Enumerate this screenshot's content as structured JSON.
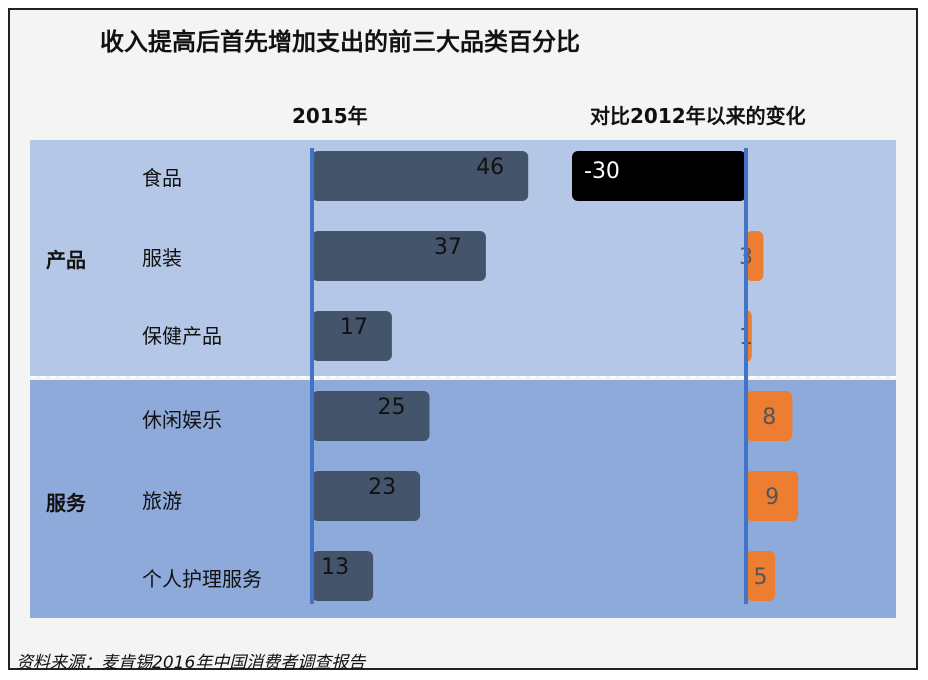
{
  "title": "收入提高后首先增加支出的前三大品类百分比",
  "source": "资料来源：麦肯锡2016年中国消费者调查报告",
  "colors": {
    "bar_2015": "#44546a",
    "change_positive": "#ed7d31",
    "change_negative": "#000000",
    "axis": "#4472c4",
    "band_products": "#b4c7e7",
    "band_services": "#8eaadb"
  },
  "chart_data": {
    "type": "bar",
    "orientation": "horizontal",
    "groups": [
      {
        "label": "产品",
        "categories": [
          "食品",
          "服装",
          "保健产品"
        ]
      },
      {
        "label": "服务",
        "categories": [
          "休闲娱乐",
          "旅游",
          "个人护理服务"
        ]
      }
    ],
    "categories": [
      "食品",
      "服装",
      "保健产品",
      "休闲娱乐",
      "旅游",
      "个人护理服务"
    ],
    "series": [
      {
        "name": "2015年",
        "values": [
          46,
          37,
          17,
          25,
          23,
          13
        ]
      },
      {
        "name": "对比2012年以来的变化",
        "values": [
          -30,
          3,
          1,
          8,
          9,
          5
        ]
      }
    ],
    "value_labels": {
      "2015": [
        "46",
        "37",
        "17",
        "25",
        "23",
        "13"
      ],
      "change": [
        "-30",
        "3",
        "1",
        "8",
        "9",
        "5"
      ]
    },
    "grid": false
  }
}
